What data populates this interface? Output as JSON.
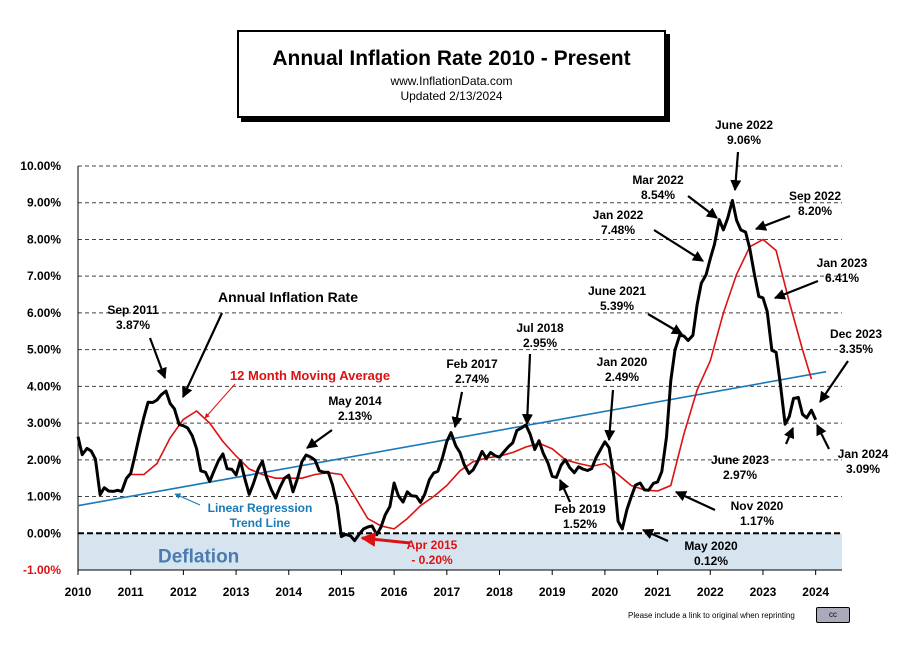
{
  "title": {
    "main": "Annual  Inflation  Rate 2010 - Present",
    "url": "www.InflationData.com",
    "updated": "Updated   2/13/2024"
  },
  "credit": "Please include a link to original when reprinting",
  "cc_badge": "cc",
  "chart_data": {
    "type": "line",
    "x_unit": "year",
    "xlim": [
      2010,
      2024.5
    ],
    "ylim": [
      -1.0,
      10.0
    ],
    "yticks": [
      "-1.00%",
      "0.00%",
      "1.00%",
      "2.00%",
      "3.00%",
      "4.00%",
      "5.00%",
      "6.00%",
      "7.00%",
      "8.00%",
      "9.00%",
      "10.00%"
    ],
    "xticks": [
      "2010",
      "2011",
      "2012",
      "2013",
      "2014",
      "2015",
      "2016",
      "2017",
      "2018",
      "2019",
      "2020",
      "2021",
      "2022",
      "2023",
      "2024"
    ],
    "grid": "horizontal dashed",
    "deflation_label": "Deflation",
    "colors": {
      "inflation": "#000000",
      "moving_average": "#dd1111",
      "regression": "#1a7ab8",
      "deflation_fill": "#d6e4f0",
      "deflation_text": "#4a7cb0",
      "annotation_red": "#dd1111"
    },
    "series": [
      {
        "name": "Annual Inflation Rate",
        "x": [
          2010.0,
          2010.08,
          2010.17,
          2010.25,
          2010.33,
          2010.42,
          2010.5,
          2010.58,
          2010.67,
          2010.75,
          2010.83,
          2010.92,
          2011.0,
          2011.08,
          2011.17,
          2011.25,
          2011.33,
          2011.42,
          2011.5,
          2011.58,
          2011.67,
          2011.75,
          2011.83,
          2011.92,
          2012.0,
          2012.08,
          2012.17,
          2012.25,
          2012.33,
          2012.42,
          2012.5,
          2012.58,
          2012.67,
          2012.75,
          2012.83,
          2012.92,
          2013.0,
          2013.08,
          2013.17,
          2013.25,
          2013.33,
          2013.42,
          2013.5,
          2013.58,
          2013.67,
          2013.75,
          2013.83,
          2013.92,
          2014.0,
          2014.08,
          2014.17,
          2014.25,
          2014.33,
          2014.42,
          2014.5,
          2014.58,
          2014.67,
          2014.75,
          2014.83,
          2014.92,
          2015.0,
          2015.08,
          2015.17,
          2015.25,
          2015.33,
          2015.42,
          2015.5,
          2015.58,
          2015.67,
          2015.75,
          2015.83,
          2015.92,
          2016.0,
          2016.08,
          2016.17,
          2016.25,
          2016.33,
          2016.42,
          2016.5,
          2016.58,
          2016.67,
          2016.75,
          2016.83,
          2016.92,
          2017.0,
          2017.08,
          2017.17,
          2017.25,
          2017.33,
          2017.42,
          2017.5,
          2017.58,
          2017.67,
          2017.75,
          2017.83,
          2017.92,
          2018.0,
          2018.08,
          2018.17,
          2018.25,
          2018.33,
          2018.42,
          2018.5,
          2018.58,
          2018.67,
          2018.75,
          2018.83,
          2018.92,
          2019.0,
          2019.08,
          2019.17,
          2019.25,
          2019.33,
          2019.42,
          2019.5,
          2019.58,
          2019.67,
          2019.75,
          2019.83,
          2019.92,
          2020.0,
          2020.08,
          2020.17,
          2020.25,
          2020.33,
          2020.42,
          2020.5,
          2020.58,
          2020.67,
          2020.75,
          2020.83,
          2020.92,
          2021.0,
          2021.08,
          2021.17,
          2021.25,
          2021.33,
          2021.42,
          2021.5,
          2021.58,
          2021.67,
          2021.75,
          2021.83,
          2021.92,
          2022.0,
          2022.08,
          2022.17,
          2022.25,
          2022.33,
          2022.42,
          2022.5,
          2022.58,
          2022.67,
          2022.75,
          2022.83,
          2022.92,
          2023.0,
          2023.08,
          2023.17,
          2023.25,
          2023.33,
          2023.42,
          2023.5,
          2023.58,
          2023.67,
          2023.75,
          2023.83,
          2023.92,
          2024.0
        ],
        "y": [
          2.63,
          2.14,
          2.31,
          2.24,
          2.02,
          1.05,
          1.24,
          1.15,
          1.14,
          1.17,
          1.14,
          1.5,
          1.63,
          2.11,
          2.68,
          3.16,
          3.57,
          3.56,
          3.63,
          3.77,
          3.87,
          3.53,
          3.39,
          2.96,
          2.93,
          2.87,
          2.65,
          2.3,
          1.7,
          1.66,
          1.41,
          1.69,
          1.99,
          2.16,
          1.76,
          1.74,
          1.59,
          1.98,
          1.47,
          1.06,
          1.36,
          1.75,
          1.96,
          1.52,
          1.18,
          0.96,
          1.24,
          1.5,
          1.58,
          1.13,
          1.51,
          1.95,
          2.13,
          2.07,
          1.99,
          1.7,
          1.66,
          1.66,
          1.32,
          0.76,
          -0.09,
          -0.03,
          -0.07,
          -0.2,
          -0.04,
          0.12,
          0.17,
          0.2,
          -0.04,
          0.17,
          0.5,
          0.73,
          1.37,
          1.02,
          0.85,
          1.13,
          1.02,
          1.01,
          0.84,
          1.06,
          1.46,
          1.64,
          1.69,
          2.07,
          2.5,
          2.74,
          2.38,
          2.2,
          1.87,
          1.63,
          1.73,
          1.94,
          2.23,
          2.04,
          2.2,
          2.11,
          2.07,
          2.21,
          2.36,
          2.46,
          2.8,
          2.87,
          2.95,
          2.7,
          2.28,
          2.52,
          2.18,
          1.91,
          1.55,
          1.52,
          1.86,
          2.0,
          1.79,
          1.65,
          1.81,
          1.75,
          1.71,
          1.76,
          2.05,
          2.29,
          2.49,
          2.33,
          1.54,
          0.33,
          0.12,
          0.65,
          0.99,
          1.31,
          1.37,
          1.18,
          1.17,
          1.36,
          1.4,
          1.68,
          2.62,
          4.16,
          4.99,
          5.39,
          5.37,
          5.25,
          5.39,
          6.22,
          6.81,
          7.04,
          7.48,
          7.87,
          8.54,
          8.26,
          8.58,
          9.06,
          8.52,
          8.26,
          8.2,
          7.75,
          7.11,
          6.45,
          6.41,
          6.04,
          4.98,
          4.93,
          4.05,
          2.97,
          3.18,
          3.67,
          3.7,
          3.24,
          3.14,
          3.35,
          3.09
        ]
      },
      {
        "name": "12 Month Moving Average",
        "x": [
          2011.0,
          2011.25,
          2011.5,
          2011.75,
          2012.0,
          2012.25,
          2012.5,
          2012.75,
          2013.0,
          2013.25,
          2013.5,
          2013.75,
          2014.0,
          2014.25,
          2014.5,
          2014.75,
          2015.0,
          2015.25,
          2015.5,
          2015.75,
          2016.0,
          2016.25,
          2016.5,
          2016.75,
          2017.0,
          2017.25,
          2017.5,
          2017.75,
          2018.0,
          2018.25,
          2018.5,
          2018.75,
          2019.0,
          2019.25,
          2019.5,
          2019.75,
          2020.0,
          2020.25,
          2020.5,
          2020.75,
          2021.0,
          2021.25,
          2021.5,
          2021.75,
          2022.0,
          2022.25,
          2022.5,
          2022.75,
          2023.0,
          2023.25,
          2023.5,
          2023.75,
          2023.92
        ],
        "y": [
          1.6,
          1.6,
          1.9,
          2.6,
          3.1,
          3.33,
          3.0,
          2.5,
          2.1,
          1.75,
          1.6,
          1.5,
          1.5,
          1.5,
          1.6,
          1.65,
          1.6,
          1.0,
          0.4,
          0.2,
          0.12,
          0.4,
          0.75,
          1.0,
          1.3,
          1.7,
          1.95,
          2.05,
          2.1,
          2.2,
          2.35,
          2.45,
          2.3,
          2.0,
          1.9,
          1.82,
          1.9,
          1.6,
          1.3,
          1.18,
          1.15,
          1.3,
          2.7,
          3.9,
          4.7,
          6.0,
          7.05,
          7.8,
          8.0,
          7.7,
          6.3,
          5.0,
          4.2
        ]
      },
      {
        "name": "Linear Regression Trend Line",
        "x": [
          2010.0,
          2024.2
        ],
        "y": [
          0.75,
          4.4
        ]
      }
    ],
    "annotations": [
      {
        "text": "Sep 2011",
        "value": "3.87%"
      },
      {
        "text": "Annual Inflation Rate",
        "value": ""
      },
      {
        "text": "12 Month Moving Average",
        "value": ""
      },
      {
        "text": "May 2014",
        "value": "2.13%"
      },
      {
        "text": "Feb 2017",
        "value": "2.74%"
      },
      {
        "text": "Jul 2018",
        "value": "2.95%"
      },
      {
        "text": "Jan 2020",
        "value": "2.49%"
      },
      {
        "text": "Feb 2019",
        "value": "1.52%"
      },
      {
        "text": "May 2020",
        "value": "0.12%"
      },
      {
        "text": "Nov 2020",
        "value": "1.17%"
      },
      {
        "text": "June 2021",
        "value": "5.39%"
      },
      {
        "text": "Jan 2022",
        "value": "7.48%"
      },
      {
        "text": "Mar 2022",
        "value": "8.54%"
      },
      {
        "text": "June 2022",
        "value": "9.06%"
      },
      {
        "text": "Sep 2022",
        "value": "8.20%"
      },
      {
        "text": "Jan 2023",
        "value": "6.41%"
      },
      {
        "text": "Dec 2023",
        "value": "3.35%"
      },
      {
        "text": "June 2023",
        "value": "2.97%"
      },
      {
        "text": "Jan 2024",
        "value": "3.09%"
      },
      {
        "text": "Apr 2015",
        "value": "- 0.20%"
      },
      {
        "text": "Linear Regression",
        "value": "Trend Line"
      }
    ]
  }
}
